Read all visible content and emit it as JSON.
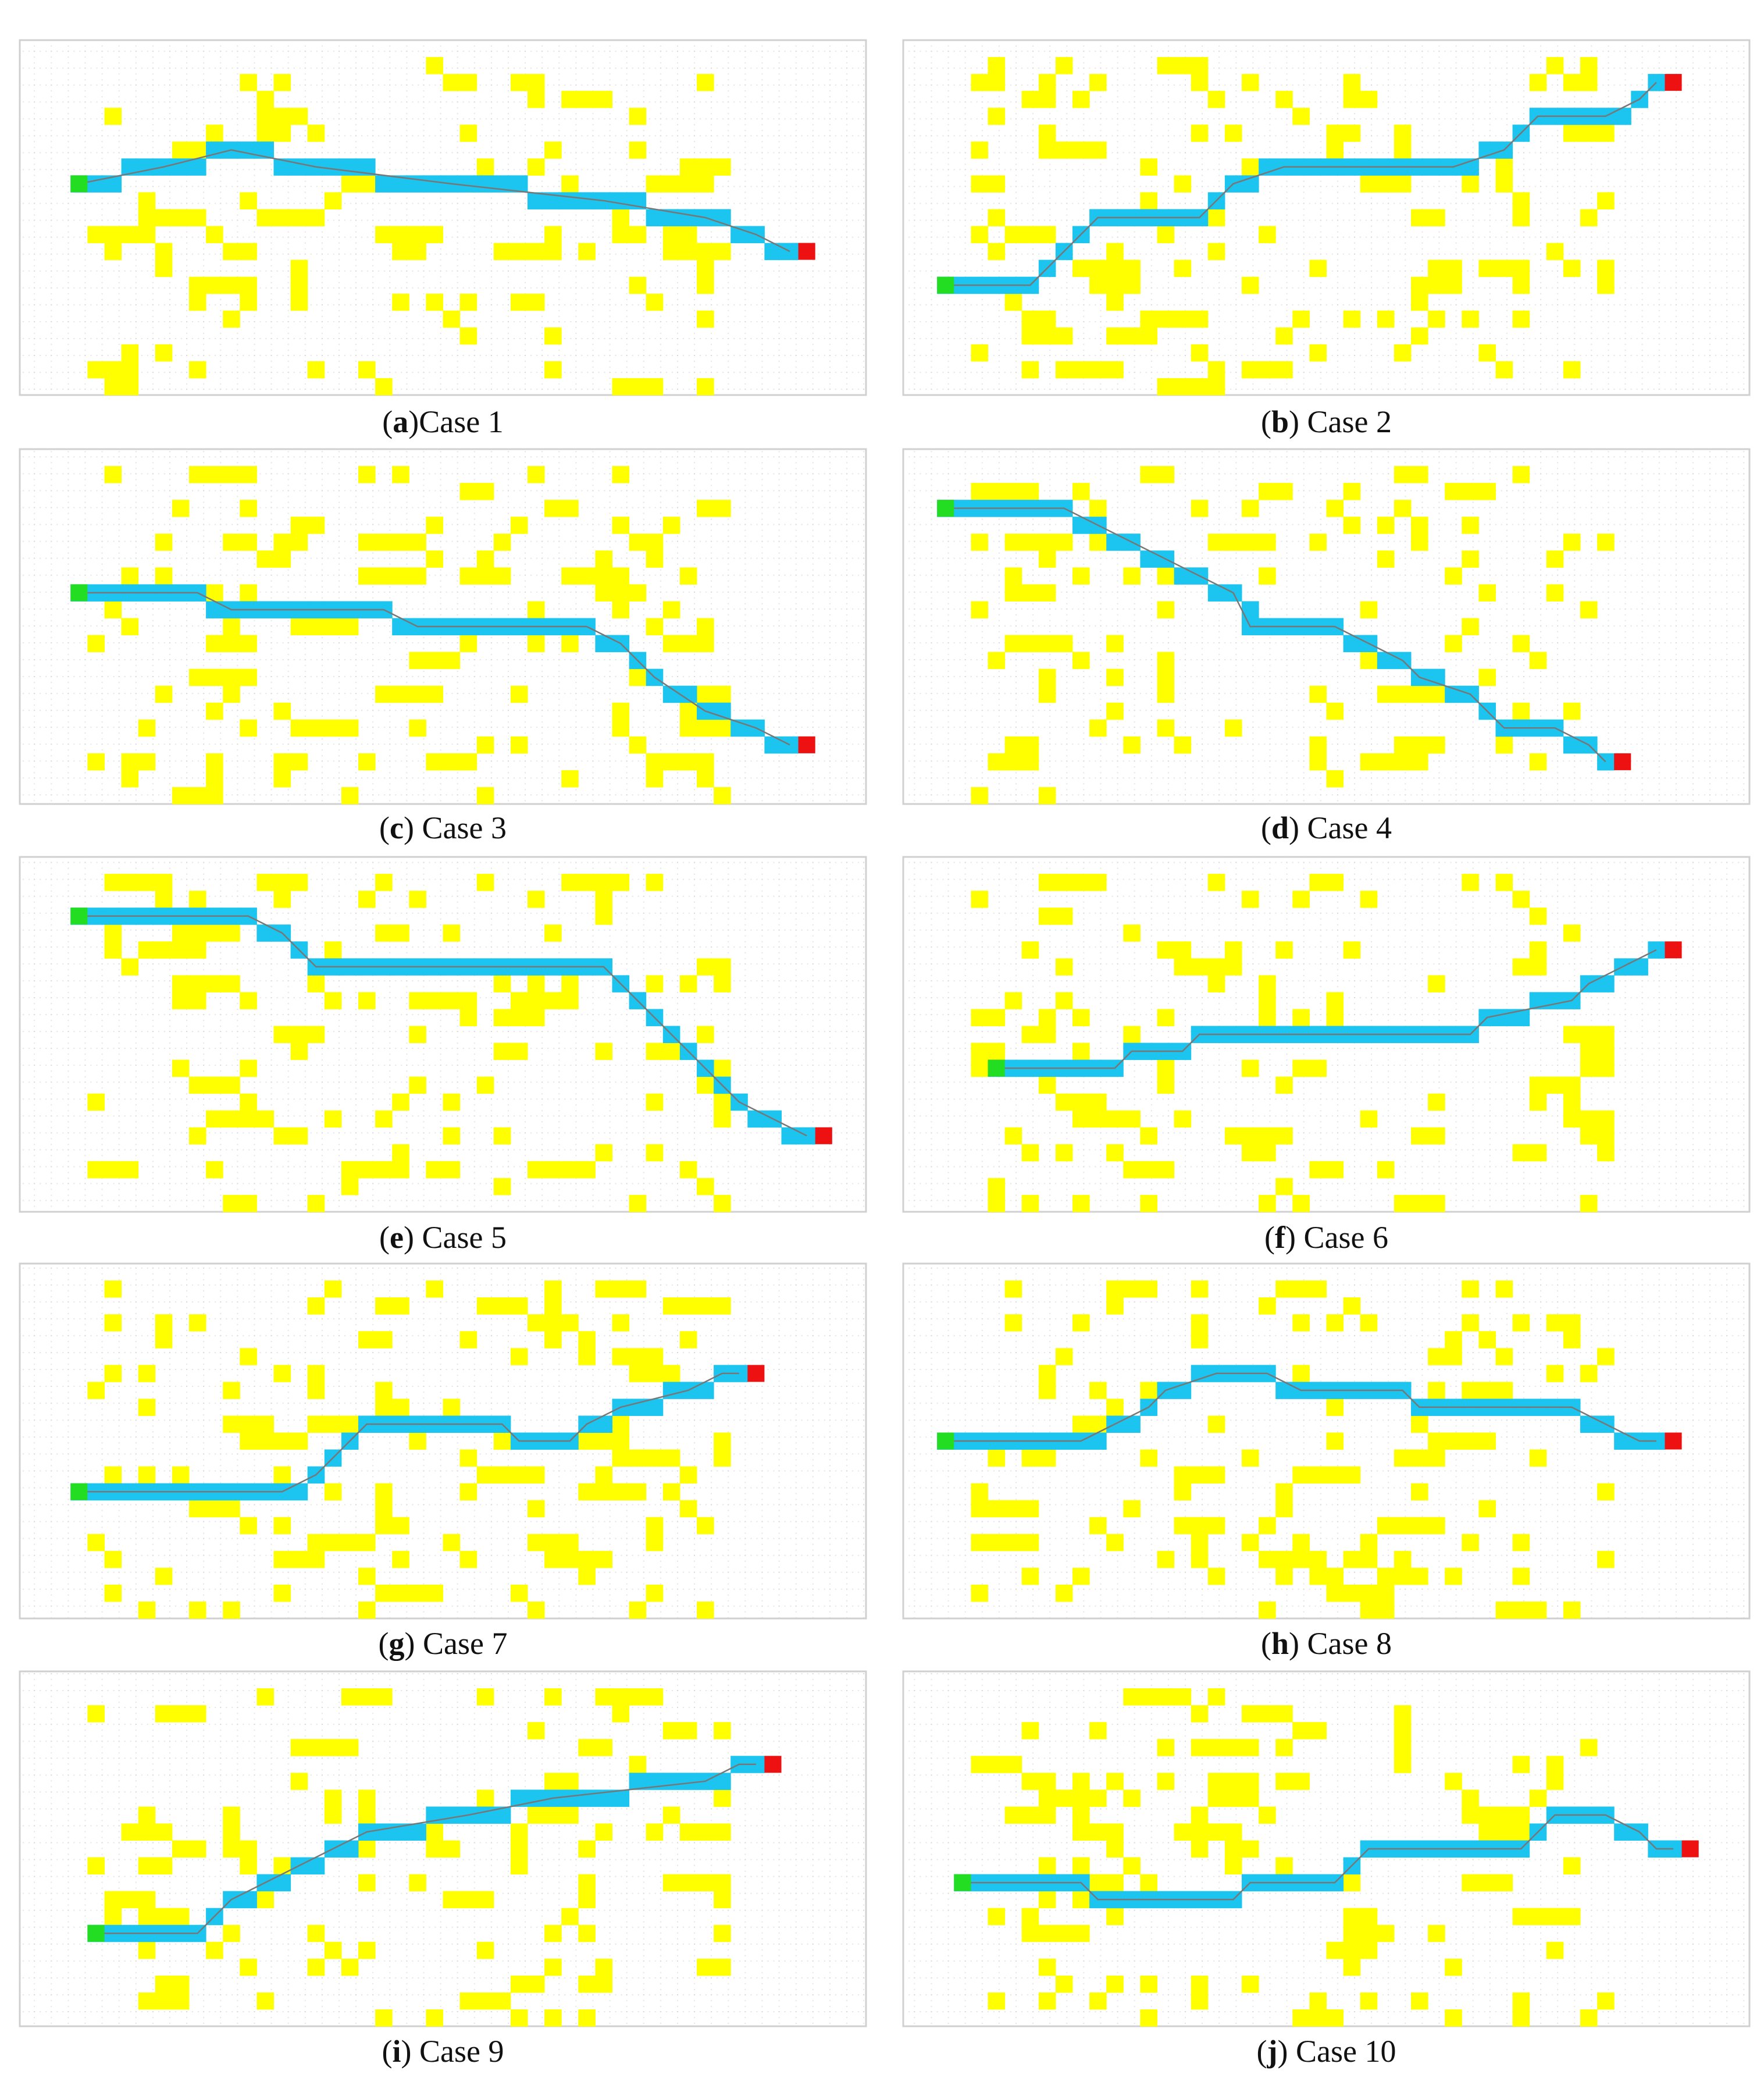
{
  "panels": [
    {
      "caption": [
        "(",
        "a",
        ")Case 1"
      ]
    },
    {
      "caption": [
        "(",
        "b",
        ") Case 2"
      ]
    },
    {
      "caption": [
        "(",
        "c",
        ") Case 3"
      ]
    },
    {
      "caption": [
        "(",
        "d",
        ") Case 4"
      ]
    },
    {
      "caption": [
        "(",
        "e",
        ") Case 5"
      ]
    },
    {
      "caption": [
        "(",
        "f",
        ") Case 6"
      ]
    },
    {
      "caption": [
        "(",
        "g",
        ") Case 7"
      ]
    },
    {
      "caption": [
        "(",
        "h",
        ") Case 8"
      ]
    },
    {
      "caption": [
        "(",
        "i",
        ") Case 9"
      ]
    },
    {
      "caption": [
        "(",
        "j",
        ") Case 10"
      ]
    }
  ]
}
